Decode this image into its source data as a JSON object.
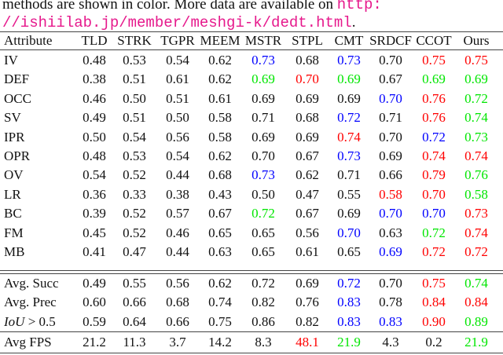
{
  "caption": {
    "line1_text": "methods are shown in color.  More data are available on ",
    "line1_link": "http:",
    "line2_link": "//ishiilab.jp/member/meshgi-k/dedt.html",
    "line2_tail": "."
  },
  "colors": {
    "r": "#ff0000",
    "b": "#0000ff",
    "g": "#00e600"
  },
  "table": {
    "header": [
      "Attribute",
      "TLD",
      "STRK",
      "TGPR",
      "MEEM",
      "MSTR",
      "STPL",
      "CMT",
      "SRDCF",
      "CCOT",
      "Ours"
    ],
    "attribute_rows": [
      {
        "label": "IV",
        "values": [
          "0.48",
          "0.53",
          "0.54",
          "0.62",
          "0.73",
          "0.68",
          "0.73",
          "0.70",
          "0.75",
          "0.75"
        ],
        "colors": [
          "",
          "",
          "",
          "",
          "b",
          "",
          "b",
          "",
          "r",
          "r"
        ]
      },
      {
        "label": "DEF",
        "values": [
          "0.38",
          "0.51",
          "0.61",
          "0.62",
          "0.69",
          "0.70",
          "0.69",
          "0.67",
          "0.69",
          "0.69"
        ],
        "colors": [
          "",
          "",
          "",
          "",
          "g",
          "r",
          "g",
          "",
          "g",
          "g"
        ]
      },
      {
        "label": "OCC",
        "values": [
          "0.46",
          "0.50",
          "0.51",
          "0.61",
          "0.69",
          "0.69",
          "0.69",
          "0.70",
          "0.76",
          "0.72"
        ],
        "colors": [
          "",
          "",
          "",
          "",
          "",
          "",
          "",
          "b",
          "r",
          "g"
        ]
      },
      {
        "label": "SV",
        "values": [
          "0.49",
          "0.51",
          "0.50",
          "0.58",
          "0.71",
          "0.68",
          "0.72",
          "0.71",
          "0.76",
          "0.74"
        ],
        "colors": [
          "",
          "",
          "",
          "",
          "",
          "",
          "b",
          "",
          "r",
          "g"
        ]
      },
      {
        "label": "IPR",
        "values": [
          "0.50",
          "0.54",
          "0.56",
          "0.58",
          "0.69",
          "0.69",
          "0.74",
          "0.70",
          "0.72",
          "0.73"
        ],
        "colors": [
          "",
          "",
          "",
          "",
          "",
          "",
          "r",
          "",
          "b",
          "g"
        ]
      },
      {
        "label": "OPR",
        "values": [
          "0.48",
          "0.53",
          "0.54",
          "0.62",
          "0.70",
          "0.67",
          "0.73",
          "0.69",
          "0.74",
          "0.74"
        ],
        "colors": [
          "",
          "",
          "",
          "",
          "",
          "",
          "b",
          "",
          "r",
          "r"
        ]
      },
      {
        "label": "OV",
        "values": [
          "0.54",
          "0.52",
          "0.44",
          "0.68",
          "0.73",
          "0.62",
          "0.71",
          "0.66",
          "0.79",
          "0.76"
        ],
        "colors": [
          "",
          "",
          "",
          "",
          "b",
          "",
          "",
          "",
          "r",
          "g"
        ]
      },
      {
        "label": "LR",
        "values": [
          "0.36",
          "0.33",
          "0.38",
          "0.43",
          "0.50",
          "0.47",
          "0.55",
          "0.58",
          "0.70",
          "0.58"
        ],
        "colors": [
          "",
          "",
          "",
          "",
          "",
          "",
          "",
          "r",
          "r",
          "g"
        ]
      },
      {
        "label": "BC",
        "values": [
          "0.39",
          "0.52",
          "0.57",
          "0.67",
          "0.72",
          "0.67",
          "0.69",
          "0.70",
          "0.70",
          "0.73"
        ],
        "colors": [
          "",
          "",
          "",
          "",
          "g",
          "",
          "",
          "b",
          "b",
          "r"
        ]
      },
      {
        "label": "FM",
        "values": [
          "0.45",
          "0.52",
          "0.46",
          "0.65",
          "0.65",
          "0.56",
          "0.70",
          "0.63",
          "0.72",
          "0.74"
        ],
        "colors": [
          "",
          "",
          "",
          "",
          "",
          "",
          "b",
          "",
          "g",
          "r"
        ]
      },
      {
        "label": "MB",
        "values": [
          "0.41",
          "0.47",
          "0.44",
          "0.63",
          "0.65",
          "0.61",
          "0.65",
          "0.69",
          "0.72",
          "0.72"
        ],
        "colors": [
          "",
          "",
          "",
          "",
          "",
          "",
          "",
          "b",
          "r",
          "r"
        ]
      }
    ],
    "summary_rows": [
      {
        "label": "Avg. Succ",
        "values": [
          "0.49",
          "0.55",
          "0.56",
          "0.62",
          "0.72",
          "0.69",
          "0.72",
          "0.70",
          "0.75",
          "0.74"
        ],
        "colors": [
          "",
          "",
          "",
          "",
          "",
          "",
          "b",
          "",
          "r",
          "g"
        ]
      },
      {
        "label": "Avg. Prec",
        "values": [
          "0.60",
          "0.66",
          "0.68",
          "0.74",
          "0.82",
          "0.76",
          "0.83",
          "0.78",
          "0.84",
          "0.84"
        ],
        "colors": [
          "",
          "",
          "",
          "",
          "",
          "",
          "b",
          "",
          "r",
          "r"
        ]
      },
      {
        "label_math": "IoU",
        "label_rest": " > 0.5",
        "values": [
          "0.59",
          "0.64",
          "0.66",
          "0.75",
          "0.86",
          "0.82",
          "0.83",
          "0.83",
          "0.90",
          "0.89"
        ],
        "colors": [
          "",
          "",
          "",
          "",
          "",
          "",
          "b",
          "b",
          "r",
          "g"
        ]
      }
    ],
    "fps_row": {
      "label": "Avg FPS",
      "values": [
        "21.2",
        "11.3",
        "3.7",
        "14.2",
        "8.3",
        "48.1",
        "21.9",
        "4.3",
        "0.2",
        "21.9"
      ],
      "colors": [
        "",
        "",
        "",
        "",
        "",
        "r",
        "g",
        "",
        "",
        "g"
      ]
    }
  }
}
